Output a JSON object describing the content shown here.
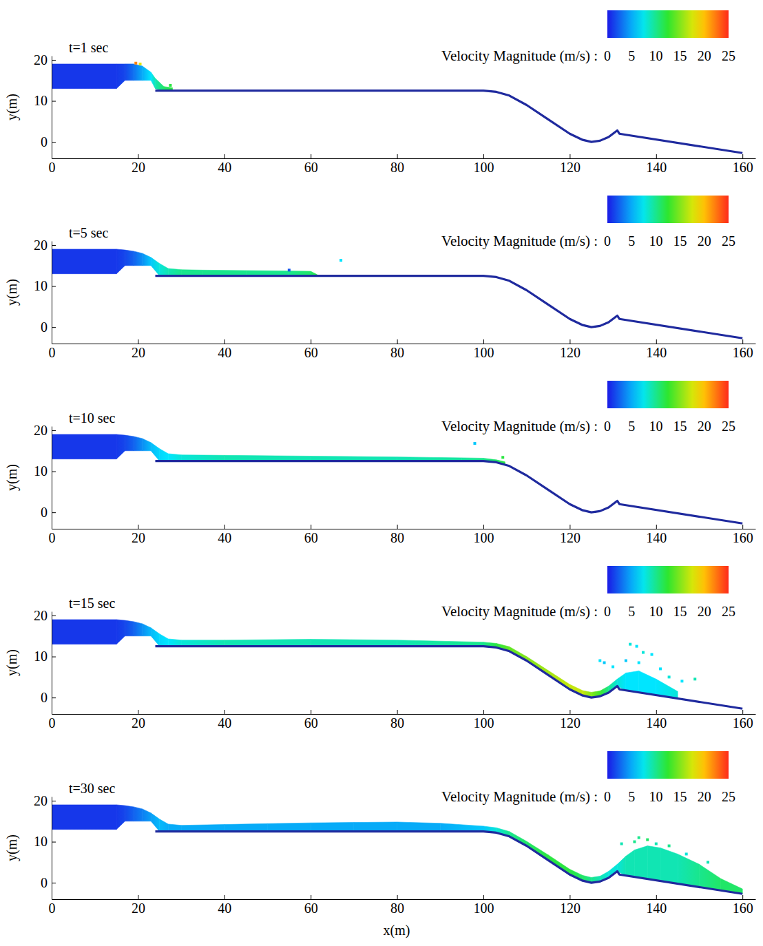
{
  "chart_data": [
    {
      "type": "area",
      "title": "t=1 sec",
      "y_label": "y(m)",
      "grid": false,
      "xlim": [
        0,
        163
      ],
      "xticks": [
        0,
        20,
        40,
        60,
        80,
        100,
        120,
        140,
        160
      ],
      "ylim": [
        -4,
        21
      ],
      "yticks": [
        0,
        10,
        20
      ],
      "colorbar": {
        "label": "Velocity Magnitude (m/s) :",
        "range": [
          0,
          25
        ],
        "ticks": [
          0,
          5,
          10,
          15,
          20,
          25
        ]
      },
      "series": [
        {
          "type": "area",
          "x": [
            0,
            15,
            17,
            19,
            21,
            23,
            24,
            26,
            28
          ],
          "values": [
            19,
            19,
            19,
            19,
            18.5,
            17,
            15.5,
            13.5,
            13.2
          ],
          "base": [
            13,
            13,
            15,
            15,
            15,
            15,
            13,
            12.5,
            12.5
          ],
          "velocity": [
            1,
            1,
            1.5,
            3,
            5,
            7,
            9,
            11,
            12
          ]
        },
        {
          "type": "line",
          "color": "#1f2a9e",
          "x": [
            24,
            100,
            103,
            106,
            110,
            115,
            120,
            123,
            125,
            127,
            129,
            131,
            131.5,
            160
          ],
          "values": [
            12.5,
            12.5,
            12.2,
            11.3,
            9,
            5.5,
            2,
            0.5,
            0,
            0.3,
            1.2,
            2.8,
            2,
            -2.7
          ]
        },
        {
          "type": "scatter",
          "x": [
            19.5,
            20.5,
            27.5
          ],
          "values": [
            19.2,
            19,
            13.8
          ],
          "velocity": [
            22,
            18,
            12
          ]
        }
      ]
    },
    {
      "type": "area",
      "title": "t=5 sec",
      "y_label": "y(m)",
      "grid": false,
      "xlim": [
        0,
        163
      ],
      "xticks": [
        0,
        20,
        40,
        60,
        80,
        100,
        120,
        140,
        160
      ],
      "ylim": [
        -4,
        21
      ],
      "yticks": [
        0,
        10,
        20
      ],
      "colorbar": {
        "label": "Velocity Magnitude (m/s) :",
        "range": [
          0,
          25
        ],
        "ticks": [
          0,
          5,
          10,
          15,
          20,
          25
        ]
      },
      "series": [
        {
          "type": "area",
          "x": [
            0,
            15,
            17,
            19,
            21,
            23,
            25,
            27,
            30,
            35,
            45,
            55,
            60,
            61.5
          ],
          "values": [
            19,
            19,
            18.8,
            18.5,
            18,
            17,
            15.5,
            14.3,
            14,
            13.9,
            13.8,
            13.7,
            13.6,
            12.8
          ],
          "base": [
            13,
            13,
            15,
            15,
            15,
            15,
            12.5,
            12.5,
            12.5,
            12.5,
            12.5,
            12.5,
            12.5,
            12.5
          ],
          "velocity": [
            1,
            1,
            1.5,
            2.5,
            4,
            6,
            8,
            9,
            10,
            10,
            10,
            10,
            11,
            12
          ]
        },
        {
          "type": "line",
          "color": "#1f2a9e",
          "x": [
            24,
            100,
            103,
            106,
            110,
            115,
            120,
            123,
            125,
            127,
            129,
            131,
            131.5,
            160
          ],
          "values": [
            12.5,
            12.5,
            12.2,
            11.3,
            9,
            5.5,
            2,
            0.5,
            0,
            0.3,
            1.2,
            2.8,
            2,
            -2.7
          ]
        },
        {
          "type": "scatter",
          "x": [
            55,
            67
          ],
          "values": [
            13.9,
            16.3
          ],
          "velocity": [
            2,
            7
          ]
        }
      ]
    },
    {
      "type": "area",
      "title": "t=10 sec",
      "y_label": "y(m)",
      "grid": false,
      "xlim": [
        0,
        163
      ],
      "xticks": [
        0,
        20,
        40,
        60,
        80,
        100,
        120,
        140,
        160
      ],
      "ylim": [
        -4,
        21
      ],
      "yticks": [
        0,
        10,
        20
      ],
      "colorbar": {
        "label": "Velocity Magnitude (m/s) :",
        "range": [
          0,
          25
        ],
        "ticks": [
          0,
          5,
          10,
          15,
          20,
          25
        ]
      },
      "series": [
        {
          "type": "area",
          "x": [
            0,
            15,
            17,
            19,
            21,
            23,
            25,
            27,
            30,
            40,
            60,
            80,
            95,
            100,
            103,
            105
          ],
          "values": [
            19,
            19,
            18.8,
            18.5,
            18,
            17,
            15.5,
            14.3,
            14,
            13.9,
            13.7,
            13.5,
            13.3,
            13.2,
            12.8,
            12.3
          ],
          "base": [
            13,
            13,
            15,
            15,
            15,
            15,
            12.5,
            12.5,
            12.5,
            12.5,
            12.5,
            12.5,
            12.5,
            12.5,
            12.2,
            11.6
          ],
          "velocity": [
            1,
            1,
            1.5,
            2.5,
            4,
            5.5,
            6.5,
            7,
            8,
            9,
            9,
            9,
            9.5,
            10,
            11,
            12
          ]
        },
        {
          "type": "line",
          "color": "#1f2a9e",
          "x": [
            24,
            100,
            103,
            106,
            110,
            115,
            120,
            123,
            125,
            127,
            129,
            131,
            131.5,
            160
          ],
          "values": [
            12.5,
            12.5,
            12.2,
            11.3,
            9,
            5.5,
            2,
            0.5,
            0,
            0.3,
            1.2,
            2.8,
            2,
            -2.7
          ]
        },
        {
          "type": "scatter",
          "x": [
            98,
            104.5
          ],
          "values": [
            16.8,
            13.4
          ],
          "velocity": [
            6,
            12
          ]
        }
      ]
    },
    {
      "type": "area",
      "title": "t=15 sec",
      "y_label": "y(m)",
      "grid": false,
      "xlim": [
        0,
        163
      ],
      "xticks": [
        0,
        20,
        40,
        60,
        80,
        100,
        120,
        140,
        160
      ],
      "ylim": [
        -4,
        21
      ],
      "yticks": [
        0,
        10,
        20
      ],
      "colorbar": {
        "label": "Velocity Magnitude (m/s) :",
        "range": [
          0,
          25
        ],
        "ticks": [
          0,
          5,
          10,
          15,
          20,
          25
        ]
      },
      "series": [
        {
          "type": "area",
          "x": [
            0,
            15,
            17,
            19,
            21,
            23,
            25,
            27,
            30,
            40,
            60,
            80,
            100,
            103,
            106,
            110,
            115,
            120,
            123,
            125,
            127,
            129,
            131,
            133,
            136,
            140,
            145
          ],
          "values": [
            19,
            19,
            18.8,
            18.5,
            18,
            17,
            15.5,
            14.3,
            14,
            14,
            14.2,
            14,
            13.5,
            13.2,
            12.4,
            10,
            6.6,
            3.2,
            1.7,
            1.3,
            1.6,
            2.8,
            4.5,
            6,
            6.5,
            4.5,
            1.5
          ],
          "base": [
            13,
            13,
            15,
            15,
            15,
            15,
            12.5,
            12.5,
            12.5,
            12.5,
            12.5,
            12.5,
            12.5,
            12.2,
            11.3,
            9,
            5.5,
            2,
            0.5,
            0,
            0.3,
            1.2,
            2.8,
            1.75,
            1.26,
            0.6,
            -0.23
          ],
          "velocity": [
            1,
            1,
            1.5,
            2.5,
            4,
            5.5,
            6.5,
            7,
            8,
            9,
            9,
            9,
            10,
            12,
            14,
            15,
            16,
            17,
            17,
            15,
            13,
            10,
            8,
            7,
            7,
            7,
            8
          ]
        },
        {
          "type": "line",
          "color": "#1f2a9e",
          "x": [
            24,
            100,
            103,
            106,
            110,
            115,
            120,
            123,
            125,
            127,
            129,
            131,
            131.5,
            160
          ],
          "values": [
            12.5,
            12.5,
            12.2,
            11.3,
            9,
            5.5,
            2,
            0.5,
            0,
            0.3,
            1.2,
            2.8,
            2,
            -2.7
          ]
        },
        {
          "type": "scatter",
          "x": [
            127,
            128,
            130,
            133,
            134,
            135.5,
            136,
            137,
            139,
            141,
            143,
            146,
            149
          ],
          "values": [
            9,
            8.5,
            7.5,
            9,
            13,
            12.5,
            8.5,
            11,
            10.5,
            7,
            5,
            4,
            4.5
          ],
          "velocity": [
            7,
            6,
            7,
            6,
            8,
            7,
            7,
            8,
            7,
            7,
            8,
            7,
            9
          ]
        }
      ]
    },
    {
      "type": "area",
      "title": "t=30 sec",
      "y_label": "y(m)",
      "x_label": "x(m)",
      "grid": false,
      "xlim": [
        0,
        163
      ],
      "xticks": [
        0,
        20,
        40,
        60,
        80,
        100,
        120,
        140,
        160
      ],
      "ylim": [
        -4,
        21
      ],
      "yticks": [
        0,
        10,
        20
      ],
      "colorbar": {
        "label": "Velocity Magnitude (m/s) :",
        "range": [
          0,
          25
        ],
        "ticks": [
          0,
          5,
          10,
          15,
          20,
          25
        ]
      },
      "series": [
        {
          "type": "area",
          "x": [
            0,
            15,
            17,
            19,
            21,
            23,
            25,
            27,
            30,
            40,
            50,
            60,
            70,
            80,
            90,
            100,
            103,
            106,
            110,
            115,
            120,
            123,
            125,
            127,
            129,
            131,
            133,
            135,
            138,
            141,
            145,
            150,
            155,
            160
          ],
          "values": [
            19,
            19,
            18.8,
            18.5,
            18,
            17,
            15.5,
            14.3,
            14,
            14.2,
            14.4,
            14.6,
            14.7,
            14.8,
            14.5,
            13.8,
            13.4,
            12.5,
            10.1,
            6.8,
            3.3,
            1.8,
            1.3,
            1.6,
            2.8,
            4.5,
            6.5,
            8,
            9,
            8.5,
            7,
            4.5,
            1,
            -1.5
          ],
          "base": [
            13,
            13,
            15,
            15,
            15,
            15,
            12.5,
            12.5,
            12.5,
            12.5,
            12.5,
            12.5,
            12.5,
            12.5,
            12.5,
            12.5,
            12.2,
            11.3,
            9,
            5.5,
            2,
            0.5,
            0,
            0.3,
            1.2,
            2.8,
            1.75,
            1.42,
            0.93,
            0.43,
            -0.23,
            -1.05,
            -1.88,
            -2.7
          ],
          "velocity": [
            1,
            1,
            1.5,
            2.5,
            3.5,
            4.5,
            5.5,
            5,
            5,
            5,
            5,
            5,
            5,
            5,
            5,
            6,
            8,
            10,
            11,
            12,
            12,
            11,
            10,
            9,
            8,
            8,
            9,
            9,
            9,
            9,
            9,
            10,
            11,
            11
          ]
        },
        {
          "type": "line",
          "color": "#1f2a9e",
          "x": [
            24,
            100,
            103,
            106,
            110,
            115,
            120,
            123,
            125,
            127,
            129,
            131,
            131.5,
            160
          ],
          "values": [
            12.5,
            12.5,
            12.2,
            11.3,
            9,
            5.5,
            2,
            0.5,
            0,
            0.3,
            1.2,
            2.8,
            2,
            -2.7
          ]
        },
        {
          "type": "scatter",
          "x": [
            132,
            135,
            136,
            138,
            140,
            143,
            147,
            152
          ],
          "values": [
            9.5,
            10,
            11,
            10.5,
            9.5,
            9,
            7,
            5
          ],
          "velocity": [
            9,
            10,
            10,
            11,
            9,
            10,
            8,
            9
          ]
        }
      ]
    }
  ]
}
